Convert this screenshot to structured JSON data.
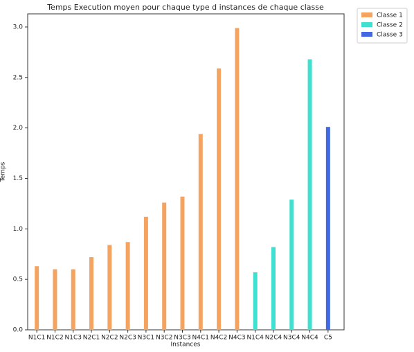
{
  "chart_data": {
    "type": "bar",
    "title": "Temps Execution moyen pour chaque type d instances de chaque classe",
    "x_label": "Instances",
    "y_label": "Temps",
    "categories": [
      "N1C1",
      "N1C2",
      "N1C3",
      "N2C1",
      "N2C2",
      "N2C3",
      "N3C1",
      "N3C2",
      "N3C3",
      "N4C1",
      "N4C2",
      "N4C3",
      "N1C4",
      "N2C4",
      "N3C4",
      "N4C4",
      "C5"
    ],
    "series": [
      {
        "name": "Classe 1",
        "color": "#f4a460",
        "values": [
          0.63,
          0.6,
          0.6,
          0.72,
          0.84,
          0.87,
          1.12,
          1.26,
          1.32,
          1.94,
          2.59,
          2.99,
          null,
          null,
          null,
          null,
          null
        ]
      },
      {
        "name": "Classe 2",
        "color": "#40e0d0",
        "values": [
          null,
          null,
          null,
          null,
          null,
          null,
          null,
          null,
          null,
          null,
          null,
          null,
          0.57,
          0.82,
          1.29,
          2.68,
          null
        ]
      },
      {
        "name": "Classe 3",
        "color": "#4169e1",
        "values": [
          null,
          null,
          null,
          null,
          null,
          null,
          null,
          null,
          null,
          null,
          null,
          null,
          null,
          null,
          null,
          null,
          2.01
        ]
      }
    ],
    "ylim": [
      0,
      3.13
    ],
    "yticks": [
      {
        "value": 0,
        "label": "0.0"
      },
      0.5,
      {
        "value": 1,
        "label": "1.0"
      },
      1.5,
      {
        "value": 2,
        "label": "2.0"
      },
      2.5,
      {
        "value": 3,
        "label": "3.0"
      }
    ],
    "grid": false,
    "legend": "outside-upper-right"
  }
}
